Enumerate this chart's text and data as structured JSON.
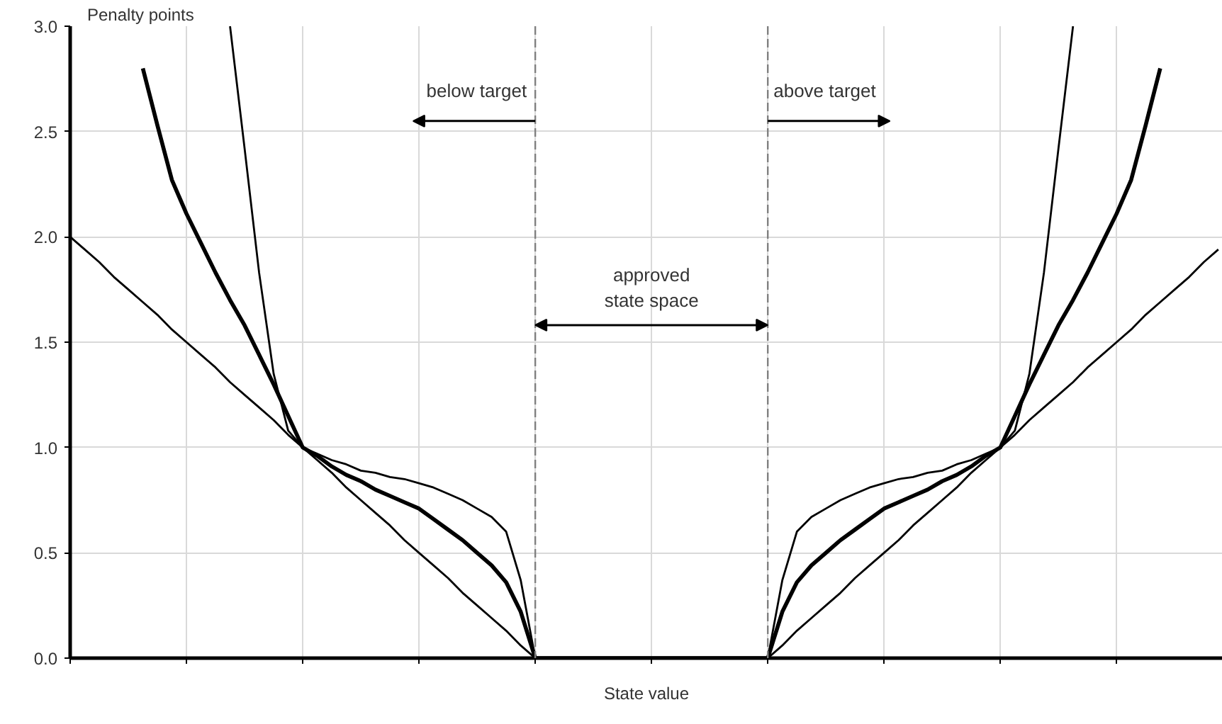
{
  "chart_data": {
    "type": "line",
    "xlabel": "State value",
    "ylabel": "Penalty points",
    "categories": [
      null,
      null,
      null,
      null,
      null,
      null,
      null,
      null,
      null,
      null,
      null,
      null,
      null,
      null,
      null,
      null,
      null,
      null,
      null,
      null,
      null,
      null,
      null,
      null,
      null,
      null,
      null,
      null,
      null,
      null,
      null,
      null,
      null,
      null,
      null,
      null,
      null,
      null,
      null,
      null,
      null,
      null,
      null,
      null,
      null,
      null,
      null,
      null,
      null,
      null,
      null,
      null,
      null,
      null,
      null,
      null,
      null,
      null,
      null,
      null,
      null,
      null,
      null,
      null,
      null,
      null,
      null,
      null,
      null,
      null,
      null,
      null,
      null,
      null,
      null,
      null,
      null,
      null,
      null,
      null
    ],
    "ylim": [
      0,
      3
    ],
    "yticks": [
      {
        "value": 0,
        "label": "0.0"
      },
      {
        "value": 0.5,
        "label": "0.5"
      },
      {
        "value": 1,
        "label": "1.0"
      },
      {
        "value": 1.5,
        "label": "1.5"
      },
      {
        "value": 2,
        "label": "2.0"
      },
      {
        "value": 2.5,
        "label": "2.5"
      },
      {
        "value": 3,
        "label": "3.0"
      }
    ],
    "tick_labels": "y",
    "grid": true,
    "marker": "none",
    "line_style": "solid",
    "series": [
      {
        "color": "#000000",
        "values": [
          2,
          1.94,
          1.88,
          1.81,
          1.75,
          1.69,
          1.63,
          1.56,
          1.5,
          1.44,
          1.38,
          1.31,
          1.25,
          1.19,
          1.13,
          1.06,
          1.0,
          0.94,
          0.88,
          0.81,
          0.75,
          0.69,
          0.63,
          0.56,
          0.5,
          0.44,
          0.38,
          0.31,
          0.25,
          0.19,
          0.13,
          0.06,
          0,
          0,
          0,
          0,
          0,
          0,
          0,
          0,
          0,
          0,
          0,
          0,
          0,
          0,
          0,
          0,
          0,
          0.06,
          0.13,
          0.19,
          0.25,
          0.31,
          0.38,
          0.44,
          0.5,
          0.56,
          0.63,
          0.69,
          0.75,
          0.81,
          0.88,
          0.94,
          1.0,
          1.06,
          1.13,
          1.19,
          1.25,
          1.31,
          1.38,
          1.44,
          1.5,
          1.56,
          1.63,
          1.69,
          1.75,
          1.81,
          1.88,
          1.94
        ]
      },
      {
        "color": "#000000",
        "values": [
          null,
          null,
          null,
          null,
          null,
          2.8,
          2.53,
          2.27,
          2.11,
          1.97,
          1.83,
          1.7,
          1.58,
          1.44,
          1.3,
          1.15,
          1.0,
          0.96,
          0.91,
          0.87,
          0.84,
          0.8,
          0.77,
          0.74,
          0.71,
          0.66,
          0.61,
          0.56,
          0.5,
          0.44,
          0.36,
          0.22,
          0,
          0,
          0,
          0,
          0,
          0,
          0,
          0,
          0,
          0,
          0,
          0,
          0,
          0,
          0,
          0,
          0,
          0.22,
          0.36,
          0.44,
          0.5,
          0.56,
          0.61,
          0.66,
          0.71,
          0.74,
          0.77,
          0.8,
          0.84,
          0.87,
          0.91,
          0.96,
          1.0,
          1.15,
          1.3,
          1.44,
          1.58,
          1.7,
          1.83,
          1.97,
          2.11,
          2.27,
          2.53,
          2.8,
          null,
          null,
          null,
          null
        ]
      },
      {
        "color": "#000000",
        "values": [
          null,
          null,
          null,
          null,
          null,
          null,
          null,
          null,
          null,
          null,
          null,
          3.0,
          2.42,
          1.83,
          1.35,
          1.08,
          1.0,
          0.97,
          0.94,
          0.92,
          0.89,
          0.88,
          0.86,
          0.85,
          0.83,
          0.81,
          0.78,
          0.75,
          0.71,
          0.67,
          0.6,
          0.37,
          0,
          0,
          0,
          0,
          0,
          0,
          0,
          0,
          0,
          0,
          0,
          0,
          0,
          0,
          0,
          0,
          0,
          0.37,
          0.6,
          0.67,
          0.71,
          0.75,
          0.78,
          0.81,
          0.83,
          0.85,
          0.86,
          0.88,
          0.89,
          0.92,
          0.94,
          0.97,
          1.0,
          1.08,
          1.35,
          1.83,
          2.42,
          3.0,
          null,
          null,
          null,
          null,
          null,
          null,
          null,
          null,
          null,
          null
        ]
      }
    ],
    "annotations": [
      "below target",
      "above target",
      "approved\nstate space"
    ]
  }
}
